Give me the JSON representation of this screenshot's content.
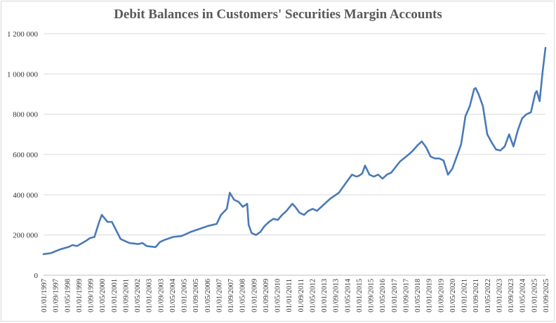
{
  "chart_data": {
    "type": "line",
    "title": "Debit Balances in Customers' Securities Margin Accounts",
    "xlabel": "",
    "ylabel": "",
    "ylim": [
      0,
      1200000
    ],
    "grid": true,
    "legend": "none",
    "line_color": "#4a7ab8",
    "y_ticks": [
      0,
      200000,
      400000,
      600000,
      800000,
      1000000,
      1200000
    ],
    "y_tick_labels": [
      "0",
      "200 000",
      "400 000",
      "600 000",
      "800 000",
      "1 000 000",
      "1 200 000"
    ],
    "x_tick_labels": [
      "01/01/1997",
      "01/09/1997",
      "01/05/1998",
      "01/01/1999",
      "01/09/1999",
      "01/05/2000",
      "01/01/2001",
      "01/09/2001",
      "01/05/2002",
      "01/01/2003",
      "01/09/2003",
      "01/05/2004",
      "01/01/2005",
      "01/09/2005",
      "01/05/2006",
      "01/01/2007",
      "01/09/2007",
      "01/05/2008",
      "01/01/2009",
      "01/09/2009",
      "01/05/2010",
      "01/01/2011",
      "01/09/2011",
      "01/05/2012",
      "01/01/2013",
      "01/09/2013",
      "01/05/2014",
      "01/01/2015",
      "01/09/2015",
      "01/05/2016",
      "01/01/2017",
      "01/09/2017",
      "01/05/2018",
      "01/01/2019",
      "01/09/2019",
      "01/05/2020",
      "01/01/2021",
      "01/09/2021",
      "01/05/2022",
      "01/01/2023",
      "01/09/2023",
      "01/05/2024",
      "01/01/2025",
      "01/09/2025"
    ],
    "series": [
      {
        "x": [
          "1997-01",
          "1997-06",
          "1998-01",
          "1998-06",
          "1998-09",
          "1998-12",
          "1999-06",
          "1999-09",
          "1999-12",
          "2000-03",
          "2000-05",
          "2000-09",
          "2000-12",
          "2001-06",
          "2001-09",
          "2001-12",
          "2002-06",
          "2002-09",
          "2002-12",
          "2003-06",
          "2003-09",
          "2003-12",
          "2004-06",
          "2004-12",
          "2005-06",
          "2005-12",
          "2006-06",
          "2006-12",
          "2007-03",
          "2007-07",
          "2007-09",
          "2007-12",
          "2008-03",
          "2008-06",
          "2008-09",
          "2008-10",
          "2008-12",
          "2009-03",
          "2009-06",
          "2009-09",
          "2009-12",
          "2010-03",
          "2010-06",
          "2010-09",
          "2010-12",
          "2011-04",
          "2011-06",
          "2011-09",
          "2011-12",
          "2012-03",
          "2012-06",
          "2012-09",
          "2012-12",
          "2013-06",
          "2013-12",
          "2014-03",
          "2014-06",
          "2014-09",
          "2014-12",
          "2015-02",
          "2015-04",
          "2015-06",
          "2015-09",
          "2015-12",
          "2016-03",
          "2016-06",
          "2016-09",
          "2016-12",
          "2017-06",
          "2017-12",
          "2018-03",
          "2018-06",
          "2018-09",
          "2018-12",
          "2019-03",
          "2019-06",
          "2019-09",
          "2019-12",
          "2020-03",
          "2020-06",
          "2020-09",
          "2020-12",
          "2021-03",
          "2021-06",
          "2021-09",
          "2021-10",
          "2021-12",
          "2022-03",
          "2022-06",
          "2022-09",
          "2022-12",
          "2023-03",
          "2023-06",
          "2023-09",
          "2023-12",
          "2024-03",
          "2024-06",
          "2024-09",
          "2024-12",
          "2025-03",
          "2025-04",
          "2025-06",
          "2025-08",
          "2025-10"
        ],
        "values": [
          105000,
          110000,
          130000,
          140000,
          150000,
          145000,
          170000,
          185000,
          190000,
          260000,
          300000,
          265000,
          265000,
          180000,
          170000,
          160000,
          155000,
          160000,
          145000,
          140000,
          165000,
          175000,
          190000,
          195000,
          215000,
          230000,
          245000,
          255000,
          300000,
          330000,
          410000,
          375000,
          365000,
          340000,
          355000,
          250000,
          210000,
          200000,
          215000,
          245000,
          265000,
          280000,
          275000,
          300000,
          320000,
          355000,
          340000,
          310000,
          300000,
          320000,
          330000,
          320000,
          340000,
          380000,
          410000,
          440000,
          470000,
          500000,
          490000,
          495000,
          505000,
          545000,
          500000,
          490000,
          500000,
          480000,
          500000,
          510000,
          565000,
          600000,
          620000,
          645000,
          665000,
          635000,
          590000,
          580000,
          580000,
          570000,
          500000,
          530000,
          590000,
          650000,
          790000,
          840000,
          925000,
          930000,
          900000,
          840000,
          700000,
          660000,
          625000,
          620000,
          640000,
          700000,
          640000,
          720000,
          780000,
          800000,
          810000,
          905000,
          915000,
          865000,
          1010000,
          1130000
        ]
      }
    ]
  }
}
